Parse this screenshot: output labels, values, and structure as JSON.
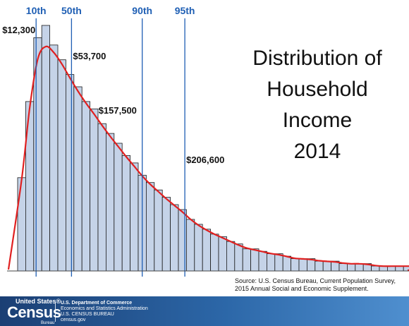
{
  "title_lines": [
    "Distribution of",
    "Household",
    "Income",
    "2014"
  ],
  "source_text": "Source: U.S. Census Bureau, Current Population Survey, 2015 Annual Social and Economic Supplement.",
  "colors": {
    "bar_fill": "#c5d3e8",
    "bar_stroke": "#1a1a1a",
    "curve": "#e02020",
    "percentile_line": "#1f5fb4",
    "footer_blue": "#1e4d8c"
  },
  "footer": {
    "logo_top": "United States®",
    "logo_main": "Census",
    "logo_bureau": "Bureau",
    "line1": "U.S. Department of Commerce",
    "line2": "Economics and Statistics Administration",
    "line3": "U.S. CENSUS BUREAU",
    "line4": "census.gov"
  },
  "chart_data": {
    "type": "bar",
    "title": "Distribution of Household Income 2014",
    "xlabel": "",
    "ylabel": "",
    "grid": false,
    "bin_heights_relative": [
      0.38,
      0.69,
      0.95,
      1.0,
      0.92,
      0.86,
      0.8,
      0.75,
      0.69,
      0.66,
      0.6,
      0.56,
      0.52,
      0.47,
      0.44,
      0.39,
      0.36,
      0.33,
      0.3,
      0.27,
      0.25,
      0.21,
      0.19,
      0.17,
      0.15,
      0.14,
      0.12,
      0.11,
      0.09,
      0.09,
      0.08,
      0.07,
      0.07,
      0.06,
      0.05,
      0.05,
      0.05,
      0.04,
      0.04,
      0.04,
      0.03,
      0.03,
      0.03,
      0.03,
      0.02,
      0.02,
      0.02,
      0.02,
      0.02,
      0.02,
      0.02,
      0.01,
      0.01,
      0.01,
      0.01,
      0.01,
      0.01,
      0.01,
      0.01,
      0.01,
      0.01
    ],
    "percentiles": [
      {
        "label": "10th",
        "value_label": "$12,300",
        "bin_position": 2.3
      },
      {
        "label": "50th",
        "value_label": "$53,700",
        "bin_position": 6.7
      },
      {
        "label": "90th",
        "value_label": "$157,500",
        "bin_position": 15.5
      },
      {
        "label": "95th",
        "value_label": "$206,600",
        "bin_position": 20.8
      }
    ]
  }
}
